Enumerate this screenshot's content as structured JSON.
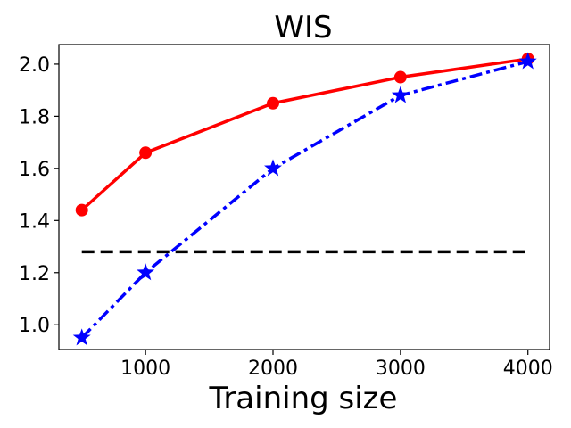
{
  "chart_data": {
    "type": "line",
    "title": "WIS",
    "xlabel": "Training size",
    "ylabel": "",
    "xlim": [
      320,
      4170
    ],
    "ylim": [
      0.905,
      2.075
    ],
    "xticks": [
      1000,
      2000,
      3000,
      4000
    ],
    "yticks": [
      1.0,
      1.2,
      1.4,
      1.6,
      1.8,
      2.0
    ],
    "xtick_labels": [
      "1000",
      "2000",
      "3000",
      "4000"
    ],
    "ytick_labels": [
      "1.0",
      "1.2",
      "1.4",
      "1.6",
      "1.8",
      "2.0"
    ],
    "grid": false,
    "series": [
      {
        "color": "#ff0000",
        "line_style": "solid",
        "marker": "circle",
        "x": [
          500,
          1000,
          2000,
          3000,
          4000
        ],
        "y": [
          1.44,
          1.66,
          1.85,
          1.95,
          2.02
        ]
      },
      {
        "color": "#0000ff",
        "line_style": "dashdot",
        "marker": "star",
        "x": [
          500,
          1000,
          2000,
          3000,
          4000
        ],
        "y": [
          0.95,
          1.2,
          1.6,
          1.88,
          2.01
        ]
      },
      {
        "color": "#000000",
        "line_style": "dashed",
        "marker": "none",
        "x": [
          500,
          4000
        ],
        "y": [
          1.28,
          1.28
        ]
      }
    ]
  }
}
